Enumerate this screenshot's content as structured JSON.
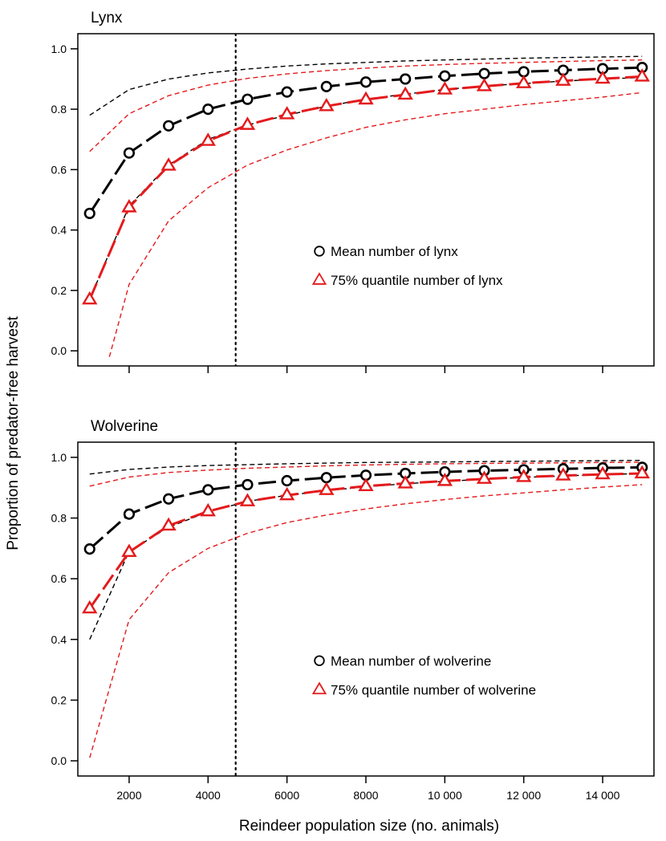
{
  "figure": {
    "ylabel": "Proportion  of predator-free harvest",
    "xlabel": "Reindeer population size (no. animals)"
  },
  "colors": {
    "mean": "#000000",
    "quantile": "#e41a1c"
  },
  "chart_data": [
    {
      "type": "line",
      "title": "Lynx",
      "xlim": [
        700,
        15300
      ],
      "ylim": [
        -0.05,
        1.05
      ],
      "xticks": [
        2000,
        4000,
        6000,
        8000,
        10000,
        12000,
        14000
      ],
      "xtick_labels": [],
      "yticks": [
        0.0,
        0.2,
        0.4,
        0.6,
        0.8,
        1.0
      ],
      "ytick_labels": [
        "0.0",
        "0.2",
        "0.4",
        "0.6",
        "0.8",
        "1.0"
      ],
      "vline": 4700,
      "legend_position": "center-right",
      "x": [
        1000,
        2000,
        3000,
        4000,
        5000,
        6000,
        7000,
        8000,
        9000,
        10000,
        11000,
        12000,
        13000,
        14000,
        15000
      ],
      "series": [
        {
          "name": "Mean number of lynx",
          "marker": "circle",
          "color": "#000000",
          "values": [
            0.455,
            0.655,
            0.745,
            0.8,
            0.833,
            0.857,
            0.875,
            0.89,
            0.9,
            0.91,
            0.918,
            0.924,
            0.929,
            0.934,
            0.938
          ],
          "ci_upper": [
            0.78,
            0.865,
            0.9,
            0.92,
            0.933,
            0.943,
            0.95,
            0.955,
            0.96,
            0.963,
            0.966,
            0.969,
            0.971,
            0.973,
            0.975
          ],
          "ci_lower": [
            0.17,
            0.48,
            0.615,
            0.7,
            0.748,
            0.78,
            0.81,
            0.833,
            0.85,
            0.865,
            0.877,
            0.885,
            0.893,
            0.9,
            0.905
          ]
        },
        {
          "name": "75% quantile number of lynx",
          "marker": "triangle",
          "color": "#e41a1c",
          "values": [
            0.17,
            0.475,
            0.613,
            0.695,
            0.748,
            0.783,
            0.81,
            0.832,
            0.848,
            0.865,
            0.876,
            0.886,
            0.894,
            0.901,
            0.908
          ],
          "ci_upper_x": [
            1000,
            2000,
            3000,
            4000,
            5000,
            6000,
            7000,
            8000,
            9000,
            10000,
            11000,
            12000,
            13000,
            14000,
            15000
          ],
          "ci_upper": [
            0.66,
            0.785,
            0.845,
            0.88,
            0.902,
            0.917,
            0.928,
            0.936,
            0.943,
            0.948,
            0.952,
            0.955,
            0.958,
            0.961,
            0.963
          ],
          "ci_lower_x": [
            1500,
            2000,
            3000,
            4000,
            5000,
            6000,
            7000,
            8000,
            9000,
            10000,
            11000,
            12000,
            13000,
            14000,
            15000
          ],
          "ci_lower": [
            -0.02,
            0.22,
            0.43,
            0.54,
            0.615,
            0.665,
            0.705,
            0.74,
            0.765,
            0.785,
            0.8,
            0.815,
            0.828,
            0.84,
            0.855
          ]
        }
      ]
    },
    {
      "type": "line",
      "title": "Wolverine",
      "xlim": [
        700,
        15300
      ],
      "ylim": [
        -0.05,
        1.05
      ],
      "xticks": [
        2000,
        4000,
        6000,
        8000,
        10000,
        12000,
        14000
      ],
      "xtick_labels": [
        "2000",
        "4000",
        "6000",
        "8000",
        "10 000",
        "12 000",
        "14 000"
      ],
      "yticks": [
        0.0,
        0.2,
        0.4,
        0.6,
        0.8,
        1.0
      ],
      "ytick_labels": [
        "0.0",
        "0.2",
        "0.4",
        "0.6",
        "0.8",
        "1.0"
      ],
      "vline": 4700,
      "legend_position": "bottom-right",
      "x": [
        1000,
        2000,
        3000,
        4000,
        5000,
        6000,
        7000,
        8000,
        9000,
        10000,
        11000,
        12000,
        13000,
        14000,
        15000
      ],
      "series": [
        {
          "name": "Mean number of wolverine",
          "marker": "circle",
          "color": "#000000",
          "values": [
            0.698,
            0.813,
            0.863,
            0.893,
            0.91,
            0.923,
            0.933,
            0.941,
            0.947,
            0.952,
            0.956,
            0.959,
            0.962,
            0.965,
            0.967
          ],
          "ci_upper": [
            0.945,
            0.96,
            0.968,
            0.973,
            0.976,
            0.979,
            0.981,
            0.983,
            0.984,
            0.985,
            0.986,
            0.987,
            0.988,
            0.989,
            0.99
          ],
          "ci_lower": [
            0.4,
            0.69,
            0.77,
            0.82,
            0.855,
            0.875,
            0.89,
            0.903,
            0.913,
            0.921,
            0.928,
            0.934,
            0.939,
            0.943,
            0.947
          ]
        },
        {
          "name": "75% quantile number of wolverine",
          "marker": "triangle",
          "color": "#e41a1c",
          "values": [
            0.502,
            0.688,
            0.775,
            0.822,
            0.855,
            0.875,
            0.892,
            0.905,
            0.914,
            0.922,
            0.929,
            0.935,
            0.94,
            0.944,
            0.947
          ],
          "ci_upper_x": [
            1000,
            2000,
            3000,
            4000,
            5000,
            6000,
            7000,
            8000,
            9000,
            10000,
            11000,
            12000,
            13000,
            14000,
            15000
          ],
          "ci_upper": [
            0.905,
            0.935,
            0.95,
            0.958,
            0.964,
            0.968,
            0.972,
            0.975,
            0.977,
            0.979,
            0.98,
            0.981,
            0.982,
            0.983,
            0.984
          ],
          "ci_lower_x": [
            1000,
            2000,
            3000,
            4000,
            5000,
            6000,
            7000,
            8000,
            9000,
            10000,
            11000,
            12000,
            13000,
            14000,
            15000
          ],
          "ci_lower": [
            0.01,
            0.465,
            0.62,
            0.7,
            0.75,
            0.785,
            0.81,
            0.83,
            0.847,
            0.861,
            0.873,
            0.883,
            0.893,
            0.902,
            0.91
          ]
        }
      ]
    }
  ]
}
